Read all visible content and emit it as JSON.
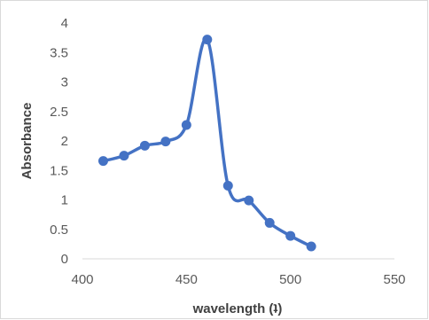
{
  "chart_data": {
    "type": "line",
    "title": "",
    "xlabel": "wavelength (ʇ)",
    "ylabel": "Absorbance",
    "xlim": [
      400,
      550
    ],
    "ylim": [
      0,
      4
    ],
    "x_ticks": [
      400,
      450,
      500,
      550
    ],
    "y_ticks": [
      "0",
      "0.5",
      "1",
      "1.5",
      "2",
      "2.5",
      "3",
      "3.5",
      "4"
    ],
    "grid": false,
    "smooth": true,
    "series": [
      {
        "color": "#4472c4",
        "x": [
          410,
          420,
          430,
          440,
          450,
          460,
          470,
          480,
          490,
          500,
          510
        ],
        "y": [
          1.66,
          1.75,
          1.92,
          1.99,
          2.27,
          3.72,
          1.24,
          0.99,
          0.61,
          0.39,
          0.21
        ]
      }
    ]
  }
}
